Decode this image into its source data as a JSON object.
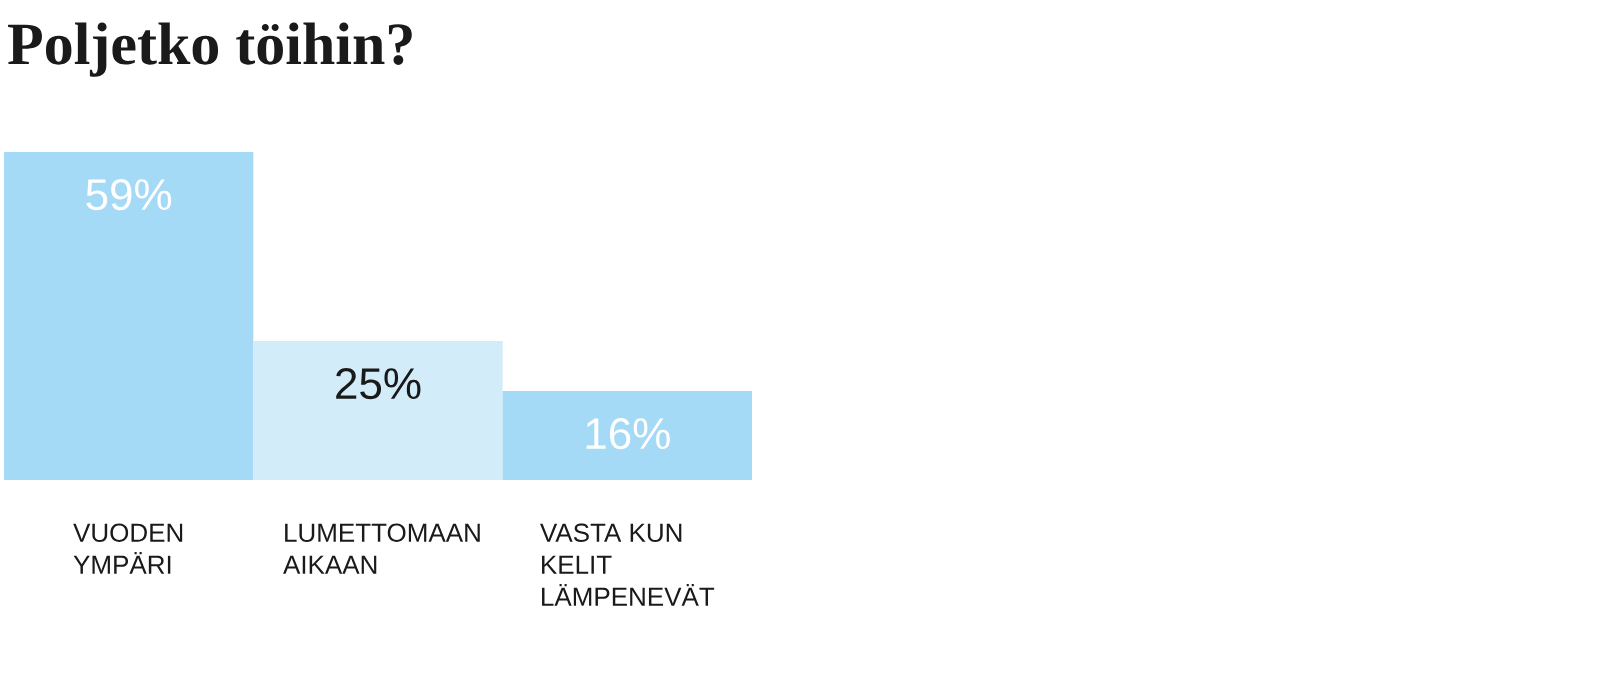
{
  "chart_data": {
    "type": "bar",
    "title": "Poljetko töihin?",
    "categories": [
      "VUODEN YMPÄRI",
      "LUMETTOMAAN AIKAAN",
      "VASTA KUN KELIT LÄMPENEVÄT"
    ],
    "values": [
      59,
      25,
      16
    ],
    "value_labels": [
      "59%",
      "25%",
      "16%"
    ],
    "colors": [
      "#a5daf6",
      "#d3ecfa",
      "#a5daf6"
    ]
  }
}
